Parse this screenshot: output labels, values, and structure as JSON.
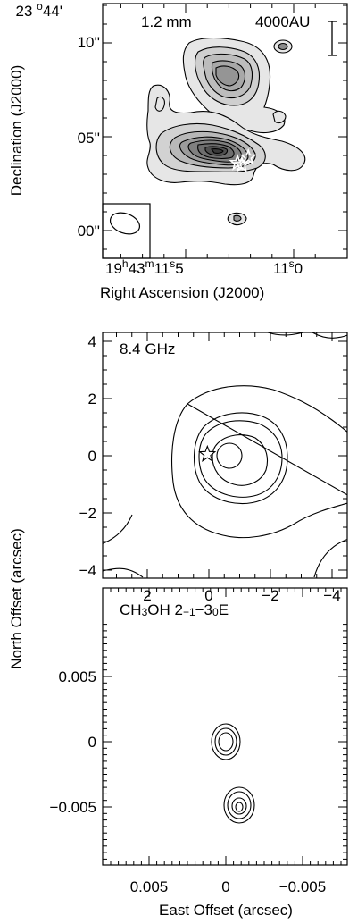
{
  "colors": {
    "ink": "#000000",
    "fill_light": "#e6e6e6",
    "fill_mid": "#bcbcbc",
    "fill_dark": "#6e6e6e",
    "fill_core": "#3a3a3a",
    "star_white": "#ffffff"
  },
  "chart_data": [
    {
      "type": "contour",
      "panel": "top",
      "title": "1.2 mm",
      "scale_bar_label": "4000AU",
      "ylabel": "Declination (J2000)",
      "xlabel": "Right Ascension (J2000)",
      "yticks": [
        {
          "label": "23°44'",
          "value": 15
        },
        {
          "label": "10''",
          "value": 10
        },
        {
          "label": "05''",
          "value": 5
        },
        {
          "label": "00''",
          "value": 0
        }
      ],
      "xticks": [
        {
          "label": "19h43m11.5s",
          "value": 11.5
        },
        {
          "label": "11.0s",
          "value": 11.0
        }
      ],
      "xtick_parts": {
        "first": [
          "19",
          "h",
          "43",
          "m",
          "11",
          "s",
          "5"
        ],
        "second": [
          "11",
          "s",
          "0"
        ]
      },
      "sources": [
        {
          "name": "star-1",
          "x": 11.26,
          "y": 3.6
        },
        {
          "name": "star-2",
          "x": 11.24,
          "y": 3.5
        },
        {
          "name": "star-3",
          "x": 11.21,
          "y": 3.9
        }
      ],
      "beam": {
        "major_arcsec": 2.1,
        "minor_arcsec": 1.5
      }
    },
    {
      "type": "contour",
      "panel": "middle",
      "title": "8.4 GHz",
      "xlim": [
        4.4,
        -4.4
      ],
      "ylim": [
        -4.2,
        4.2
      ],
      "yticks": [
        {
          "label": "4",
          "value": 4
        },
        {
          "label": "2",
          "value": 2
        },
        {
          "label": "0",
          "value": 0
        },
        {
          "label": "−2",
          "value": -2
        },
        {
          "label": "−4",
          "value": -4
        }
      ],
      "xticks": [
        {
          "label": "2",
          "value": 2
        },
        {
          "label": "0",
          "value": 0
        },
        {
          "label": "−2",
          "value": -2
        },
        {
          "label": "−4",
          "value": -4
        }
      ],
      "peak": {
        "x": -0.3,
        "y": 0.0
      },
      "star": {
        "x": 0.05,
        "y": 0.05
      }
    },
    {
      "type": "contour",
      "panel": "bottom",
      "title_parts": [
        "CH",
        "3",
        "OH 2",
        "−1",
        "−3",
        "0",
        "E"
      ],
      "ylabel_shared": "North Offset (arcsec)",
      "xlabel": "East Offset (arcsec)",
      "xlim": [
        0.009,
        -0.009
      ],
      "ylim": [
        -0.0095,
        0.009
      ],
      "yticks": [
        {
          "label": "0.005",
          "value": 0.005
        },
        {
          "label": "0",
          "value": 0
        },
        {
          "label": "−0.005",
          "value": -0.005
        }
      ],
      "xticks": [
        {
          "label": "0.005",
          "value": 0.005
        },
        {
          "label": "0",
          "value": 0
        },
        {
          "label": "−0.005",
          "value": -0.005
        }
      ],
      "components": [
        {
          "name": "north",
          "x": 0.0001,
          "y": 0.0001
        },
        {
          "name": "south",
          "x": -0.0008,
          "y": -0.0048
        }
      ]
    }
  ]
}
